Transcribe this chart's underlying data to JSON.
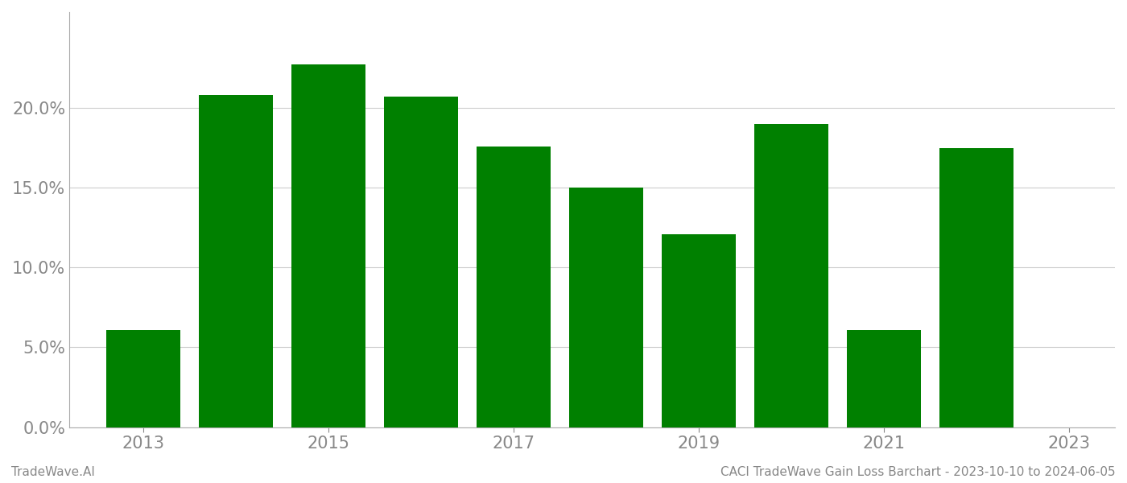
{
  "years": [
    2013,
    2014,
    2015,
    2016,
    2017,
    2018,
    2019,
    2020,
    2021,
    2022
  ],
  "values": [
    0.061,
    0.208,
    0.227,
    0.207,
    0.176,
    0.15,
    0.121,
    0.19,
    0.061,
    0.175
  ],
  "bar_color": "#008000",
  "background_color": "#ffffff",
  "ylim": [
    0,
    0.26
  ],
  "yticks": [
    0.0,
    0.05,
    0.1,
    0.15,
    0.2
  ],
  "xtick_labels": [
    "2013",
    "2015",
    "2017",
    "2019",
    "2021",
    "2023"
  ],
  "grid_color": "#cccccc",
  "footer_left": "TradeWave.AI",
  "footer_right": "CACI TradeWave Gain Loss Barchart - 2023-10-10 to 2024-06-05",
  "footer_color": "#888888",
  "footer_fontsize": 11,
  "bar_width": 0.8,
  "tick_labelsize": 15,
  "tick_color": "#888888",
  "spine_color": "#aaaaaa"
}
